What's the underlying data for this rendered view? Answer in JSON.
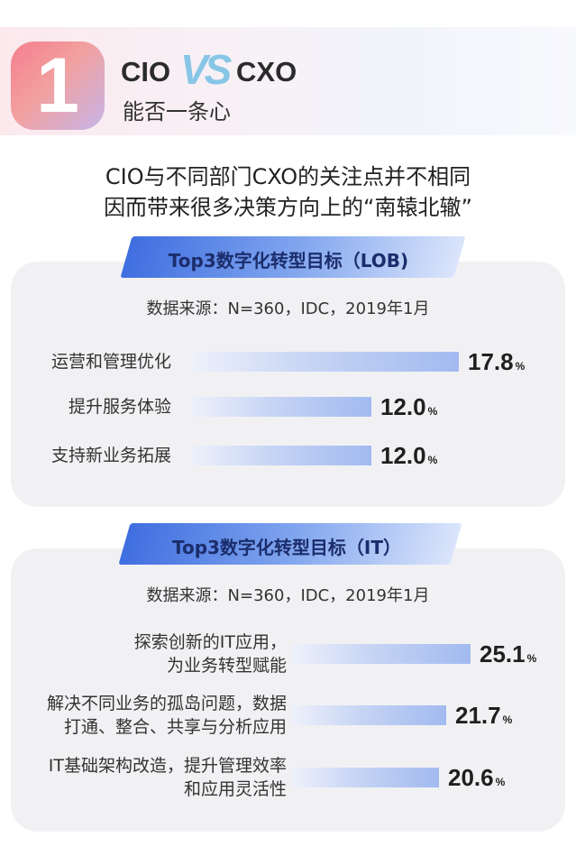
{
  "header": {
    "number": "1",
    "left_role": "CIO",
    "vs": "VS",
    "right_role": "CXO",
    "subtitle": "能否一条心"
  },
  "intro": {
    "line1": "CIO与不同部门CXO的关注点并不相同",
    "line2": "因而带来很多决策方向上的“南辕北辙”"
  },
  "colors": {
    "accent_blue": "#3f6ee0",
    "bar_light": "#a2baf0",
    "number_pink": "#f47f8e"
  },
  "chart_data": [
    {
      "type": "bar",
      "orientation": "horizontal",
      "title": "Top3数字化转型目标（LOB)",
      "source": "数据来源：N=360，IDC，2019年1月",
      "unit": "%",
      "categories": [
        "运营和管理优化",
        "提升服务体验",
        "支持新业务拓展"
      ],
      "values": [
        17.8,
        12.0,
        12.0
      ],
      "value_labels": [
        "17.8",
        "12.0",
        "12.0"
      ]
    },
    {
      "type": "bar",
      "orientation": "horizontal",
      "title": "Top3数字化转型目标（IT）",
      "source": "数据来源：N=360，IDC，2019年1月",
      "unit": "%",
      "categories": [
        [
          "探索创新的IT应用，",
          "为业务转型赋能"
        ],
        [
          "解决不同业务的孤岛问题，数据",
          "打通、整合、共享与分析应用"
        ],
        [
          "IT基础架构改造，提升管理效率",
          "和应用灵活性"
        ]
      ],
      "values": [
        25.1,
        21.7,
        20.6
      ],
      "value_labels": [
        "25.1",
        "21.7",
        "20.6"
      ]
    }
  ]
}
